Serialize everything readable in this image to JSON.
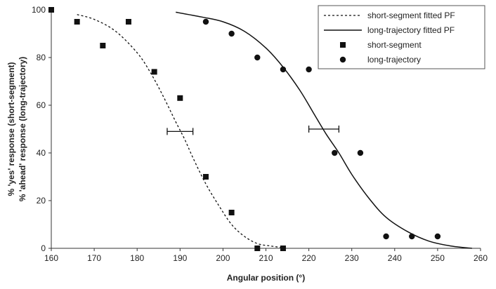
{
  "chart_data": {
    "type": "scatter",
    "xlabel": "Angular position (°)",
    "ylabel_line1": "% 'yes' response (short-segment)",
    "ylabel_line2": "% 'ahead' response (long-trajectory)",
    "xlim": [
      160,
      260
    ],
    "ylim": [
      0,
      100
    ],
    "x_ticks": [
      160,
      170,
      180,
      190,
      200,
      210,
      220,
      230,
      240,
      250,
      260
    ],
    "y_ticks": [
      0,
      20,
      40,
      60,
      80,
      100
    ],
    "grid": false,
    "legend_position": "top-right",
    "legend": [
      "short-segment fitted PF",
      "long-trajectory fitted PF",
      "short-segment",
      "long-trajectory"
    ],
    "series": [
      {
        "name": "short-segment",
        "kind": "points",
        "marker": "square",
        "x": [
          160,
          166,
          172,
          178,
          184,
          190,
          196,
          202,
          208,
          214
        ],
        "y": [
          100,
          95,
          85,
          95,
          74,
          63,
          30,
          15,
          0,
          0
        ]
      },
      {
        "name": "long-trajectory",
        "kind": "points",
        "marker": "circle",
        "x": [
          196,
          202,
          208,
          214,
          220,
          226,
          232,
          238,
          244,
          250
        ],
        "y": [
          95,
          90,
          80,
          75,
          75,
          40,
          40,
          5,
          5,
          5
        ]
      },
      {
        "name": "short-segment fitted PF",
        "kind": "curve",
        "style": "dashed",
        "x": [
          166,
          170,
          175,
          180,
          183,
          186,
          189,
          191,
          193,
          196,
          199,
          202,
          205,
          208,
          211,
          215
        ],
        "y": [
          98,
          96,
          91,
          82,
          74,
          64,
          53,
          46,
          38,
          27,
          18,
          10,
          5,
          2,
          1,
          0
        ]
      },
      {
        "name": "long-trajectory fitted PF",
        "kind": "curve",
        "style": "solid",
        "x": [
          189,
          195,
          200,
          205,
          210,
          214,
          218,
          221,
          224,
          227,
          230,
          234,
          238,
          243,
          248,
          253,
          258
        ],
        "y": [
          99,
          97,
          95,
          91,
          84,
          76,
          66,
          57,
          48,
          40,
          31,
          21,
          13,
          7,
          3,
          1,
          0
        ]
      }
    ],
    "error_bars": [
      {
        "y": 49,
        "x_low": 187,
        "x_high": 193
      },
      {
        "y": 50,
        "x_low": 220,
        "x_high": 227
      }
    ],
    "colors": {
      "ink": "#111111",
      "frame": "#333333"
    }
  }
}
